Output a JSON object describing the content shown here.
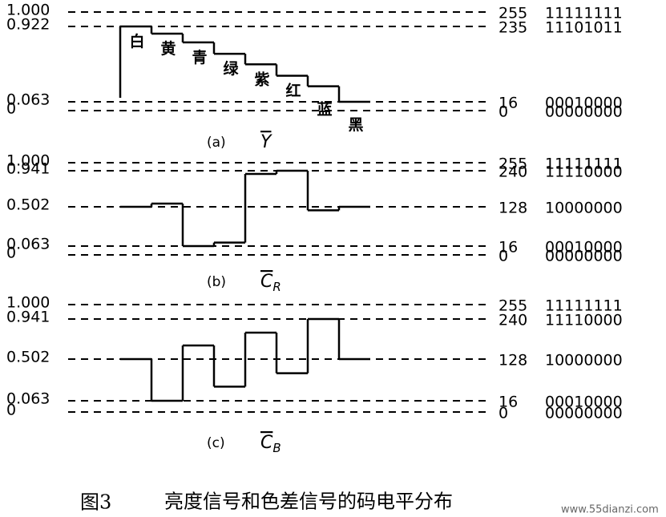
{
  "panels": [
    {
      "label": "(a)",
      "signal": "Y",
      "levels": [
        {
          "value": 1,
          "label": "1.000",
          "code": "255",
          "binary": "11111111"
        },
        {
          "value": 0.922,
          "label": "0.922",
          "code": "235",
          "binary": "11101011"
        },
        {
          "value": 0.063,
          "label": "0.063",
          "code": "16",
          "binary": "00010000"
        },
        {
          "value": 0,
          "label": "0",
          "code": "0",
          "binary": "00000000"
        }
      ],
      "steps": [
        0.922,
        0.84,
        0.74,
        0.61,
        0.49,
        0.36,
        0.24,
        0.063
      ],
      "color_names": [
        "白",
        "黄",
        "青",
        "绿",
        "紫",
        "红",
        "蓝",
        "黑"
      ]
    },
    {
      "label": "(b)",
      "signal": "C",
      "subscript": "R",
      "levels": [
        {
          "value": 1,
          "label": "1.000",
          "code": "255",
          "binary": "11111111"
        },
        {
          "value": 0.941,
          "label": "0.941",
          "code": "240",
          "binary": "11110000"
        },
        {
          "value": 0.502,
          "label": "0.502",
          "code": "128",
          "binary": "10000000"
        },
        {
          "value": 0.063,
          "label": "0.063",
          "code": "16",
          "binary": "00010000"
        },
        {
          "value": 0,
          "label": "0",
          "code": "0",
          "binary": "00000000"
        }
      ],
      "steps": [
        0.502,
        0.541,
        0.063,
        0.102,
        0.902,
        0.941,
        0.463,
        0.502
      ]
    },
    {
      "label": "(c)",
      "signal": "C",
      "subscript": "B",
      "levels": [
        {
          "value": 1,
          "label": "1.000",
          "code": "255",
          "binary": "11111111"
        },
        {
          "value": 0.941,
          "label": "0.941",
          "code": "240",
          "binary": "11110000"
        },
        {
          "value": 0.502,
          "label": "0.502",
          "code": "128",
          "binary": "10000000"
        },
        {
          "value": 0.063,
          "label": "0.063",
          "code": "16",
          "binary": "00010000"
        },
        {
          "value": 0,
          "label": "0",
          "code": "0",
          "binary": "00000000"
        }
      ],
      "steps": [
        0.502,
        0.063,
        0.651,
        0.212,
        0.792,
        0.353,
        0.941,
        0.502
      ]
    }
  ],
  "caption": {
    "figure": "图3",
    "text": "亮度信号和色差信号的码电平分布"
  },
  "watermark": "www.55dianzi.com"
}
